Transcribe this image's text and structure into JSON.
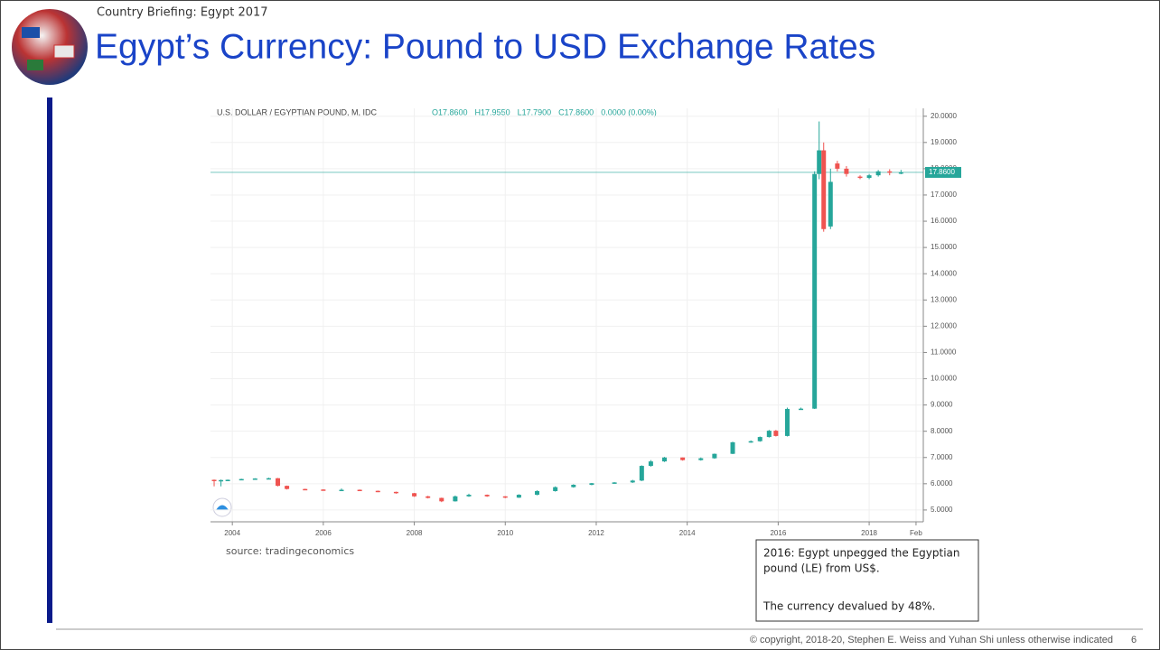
{
  "header": {
    "kicker": "Country Briefing: Egypt 2017",
    "title": "Egypt’s Currency: Pound to USD Exchange Rates"
  },
  "source": "source: tradingeconomics",
  "note": {
    "lines": [
      "2016: Egypt unpegged the Egyptian",
      "pound (LE) from US$.",
      "The currency devalued by 48%."
    ]
  },
  "footer": {
    "copyright": "© copyright, 2018-20, Stephen E. Weiss and Yuhan Shi unless otherwise indicated",
    "page": "6"
  },
  "chart_data": {
    "type": "candlestick",
    "title": "U.S. DOLLAR / EGYPTIAN POUND, M, IDC",
    "ohlc_text": [
      "O17.8600",
      "H17.9550",
      "L17.7900",
      "C17.8600",
      "0.0000 (0.00%)"
    ],
    "up_color": "#26a69a",
    "down_color": "#ef5350",
    "grid": true,
    "last_value": 17.86,
    "last_label": "17.8600",
    "xlim": [
      2003.52,
      2019.19
    ],
    "xticks": [
      2004,
      2006,
      2008,
      2010,
      2012,
      2014,
      2016,
      2018,
      {
        "value": 2019.03,
        "label": "Feb"
      }
    ],
    "ylim": [
      4.55,
      20.3
    ],
    "yticks": [
      {
        "value": 5,
        "label": "5.0000"
      },
      {
        "value": 6,
        "label": "6.0000"
      },
      {
        "value": 7,
        "label": "7.0000"
      },
      {
        "value": 8,
        "label": "8.0000"
      },
      {
        "value": 9,
        "label": "9.0000"
      },
      {
        "value": 10,
        "label": "10.0000"
      },
      {
        "value": 11,
        "label": "11.0000"
      },
      {
        "value": 12,
        "label": "12.0000"
      },
      {
        "value": 13,
        "label": "13.0000"
      },
      {
        "value": 14,
        "label": "14.0000"
      },
      {
        "value": 15,
        "label": "15.0000"
      },
      {
        "value": 16,
        "label": "16.0000"
      },
      {
        "value": 17,
        "label": "17.0000"
      },
      {
        "value": 18,
        "label": "18.0000"
      },
      {
        "value": 19,
        "label": "19.0000"
      },
      {
        "value": 20,
        "label": "20.0000"
      }
    ],
    "x": [
      2003.6,
      2003.75,
      2003.9,
      2004.2,
      2004.5,
      2004.8,
      2005.0,
      2005.2,
      2005.6,
      2006.0,
      2006.4,
      2006.8,
      2007.2,
      2007.6,
      2008.0,
      2008.3,
      2008.6,
      2008.9,
      2009.2,
      2009.6,
      2010.0,
      2010.3,
      2010.7,
      2011.1,
      2011.5,
      2011.9,
      2012.4,
      2012.8,
      2013.0,
      2013.2,
      2013.5,
      2013.9,
      2014.3,
      2014.6,
      2015.0,
      2015.4,
      2015.6,
      2015.8,
      2015.95,
      2016.2,
      2016.5,
      2016.8,
      2016.9,
      2017.0,
      2017.15,
      2017.3,
      2017.5,
      2017.8,
      2018.0,
      2018.2,
      2018.45,
      2018.7
    ],
    "open": [
      6.15,
      6.12,
      6.14,
      6.15,
      6.18,
      6.2,
      6.21,
      5.92,
      5.8,
      5.78,
      5.76,
      5.77,
      5.73,
      5.69,
      5.64,
      5.52,
      5.46,
      5.33,
      5.52,
      5.58,
      5.52,
      5.47,
      5.58,
      5.72,
      5.87,
      5.96,
      6.02,
      6.05,
      6.12,
      6.68,
      6.85,
      7.0,
      6.9,
      6.97,
      7.14,
      7.58,
      7.62,
      7.78,
      8.02,
      7.82,
      8.85,
      8.86,
      17.8,
      18.7,
      15.8,
      18.2,
      18.0,
      17.7,
      17.65,
      17.75,
      17.9,
      17.86
    ],
    "high": [
      6.16,
      6.16,
      6.16,
      6.19,
      6.21,
      6.23,
      6.22,
      5.93,
      5.81,
      5.79,
      5.82,
      5.78,
      5.74,
      5.7,
      5.65,
      5.54,
      5.47,
      5.55,
      5.62,
      5.59,
      5.53,
      5.6,
      5.75,
      5.9,
      5.98,
      6.03,
      6.06,
      6.15,
      6.7,
      6.9,
      7.02,
      7.0,
      7.0,
      7.15,
      7.6,
      7.65,
      7.8,
      8.05,
      8.05,
      8.9,
      8.9,
      17.9,
      19.8,
      19.0,
      18.0,
      18.3,
      18.1,
      17.75,
      17.8,
      17.95,
      17.98,
      17.955
    ],
    "low": [
      5.9,
      5.9,
      6.1,
      6.14,
      6.17,
      6.19,
      5.9,
      5.78,
      5.77,
      5.75,
      5.74,
      5.72,
      5.68,
      5.62,
      5.5,
      5.44,
      5.3,
      5.32,
      5.5,
      5.5,
      5.45,
      5.46,
      5.56,
      5.7,
      5.85,
      5.94,
      6.0,
      6.03,
      6.1,
      6.65,
      6.83,
      6.88,
      6.88,
      6.95,
      7.13,
      7.56,
      7.6,
      7.76,
      7.8,
      7.8,
      8.82,
      8.85,
      17.6,
      15.6,
      15.7,
      17.9,
      17.7,
      17.6,
      17.6,
      17.7,
      17.75,
      17.79
    ],
    "close": [
      6.12,
      6.14,
      6.15,
      6.18,
      6.2,
      6.21,
      5.92,
      5.8,
      5.78,
      5.76,
      5.77,
      5.73,
      5.69,
      5.64,
      5.52,
      5.46,
      5.33,
      5.52,
      5.58,
      5.52,
      5.47,
      5.58,
      5.72,
      5.87,
      5.96,
      6.02,
      6.05,
      6.12,
      6.68,
      6.85,
      7.0,
      6.9,
      6.97,
      7.14,
      7.58,
      7.62,
      7.78,
      8.02,
      7.82,
      8.85,
      8.86,
      17.8,
      18.7,
      15.7,
      17.5,
      18.0,
      17.8,
      17.65,
      17.75,
      17.9,
      17.85,
      17.86
    ]
  }
}
